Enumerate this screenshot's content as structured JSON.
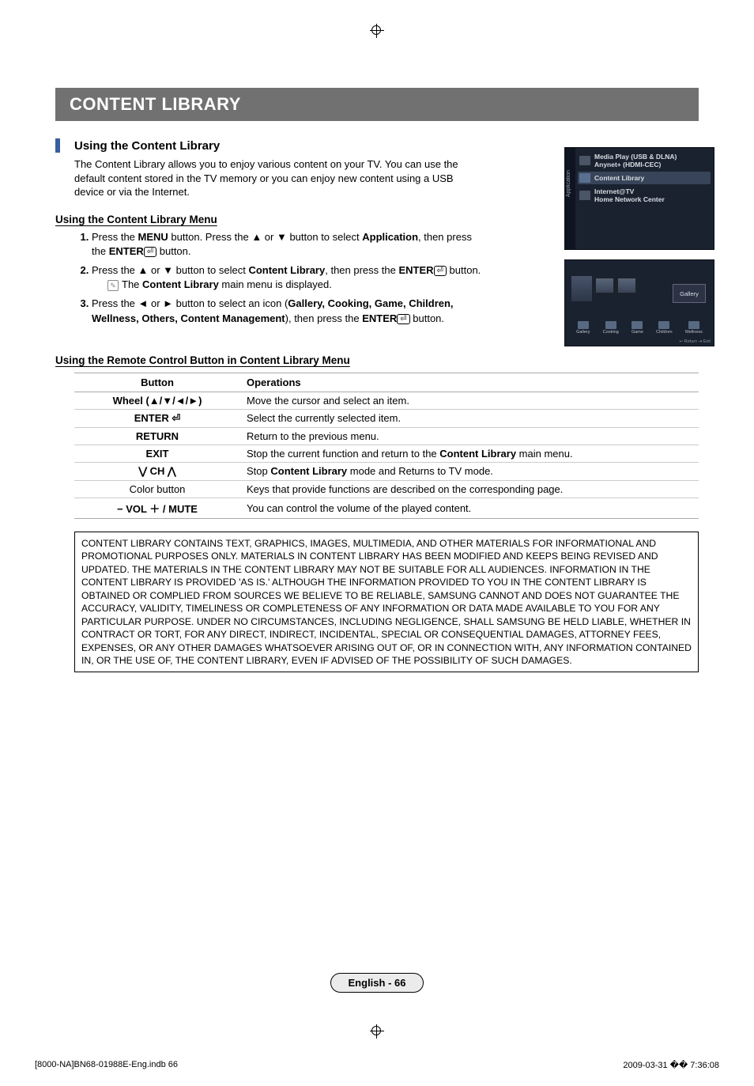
{
  "banner": "CONTENT LIBRARY",
  "section_title": "Using the Content Library",
  "intro": "The Content Library allows you to enjoy various content on your TV. You can use the default content stored in the TV memory or you can enjoy new content using a USB device or via the Internet.",
  "subhead_menu": "Using the Content Library Menu",
  "steps": [
    {
      "pre": "Press the ",
      "b1": "MENU",
      "mid1": " button. Press the ▲ or ▼ button to select ",
      "b2": "Application",
      "mid2": ", then press the ",
      "b3": "ENTER",
      "post": " button."
    },
    {
      "pre": "Press the ▲ or ▼ button to select ",
      "b1": "Content Library",
      "mid1": ", then press the ",
      "b2": "ENTER",
      "post": " button.",
      "note_pre": "The ",
      "note_b": "Content Library",
      "note_post": " main menu is displayed."
    },
    {
      "pre": "Press the ◄ or ► button to select an icon (",
      "b1": "Gallery, Cooking, Game, Children, Wellness, Others, Content Management",
      "mid1": "), then press the ",
      "b2": "ENTER",
      "post": " button."
    }
  ],
  "subhead_rc": "Using the Remote Control Button in Content Library Menu",
  "table": {
    "headers": [
      "Button",
      "Operations"
    ],
    "rows": [
      {
        "btn": "Wheel (▲/▼/◄/►)",
        "op": "Move the cursor and select an item."
      },
      {
        "btn": "ENTER ⏎",
        "op": "Select the currently selected item."
      },
      {
        "btn": "RETURN",
        "op": "Return to the previous menu."
      },
      {
        "btn": "EXIT",
        "op_pre": "Stop the current function and return to the ",
        "op_b": "Content Library",
        "op_post": " main menu."
      },
      {
        "btn": "⋁ CH ⋀",
        "op_pre": "Stop ",
        "op_b": "Content Library",
        "op_post": " mode and Returns to TV mode."
      },
      {
        "btn": "Color button",
        "btn_plain": true,
        "op": "Keys that provide functions are described on the corresponding page."
      },
      {
        "btn": "− VOL ＋ / MUTE",
        "op": "You can control the volume of the played content."
      }
    ]
  },
  "disclaimer": "CONTENT LIBRARY CONTAINS TEXT, GRAPHICS, IMAGES, MULTIMEDIA, AND OTHER MATERIALS FOR INFORMATIONAL AND PROMOTIONAL PURPOSES ONLY. MATERIALS IN CONTENT LIBRARY HAS BEEN MODIFIED AND KEEPS BEING REVISED AND UPDATED. THE MATERIALS IN THE CONTENT LIBRARY MAY NOT BE SUITABLE FOR ALL AUDIENCES.\nINFORMATION IN THE CONTENT LIBRARY IS PROVIDED 'AS IS.' ALTHOUGH THE INFORMATION PROVIDED TO YOU IN THE CONTENT LIBRARY IS OBTAINED OR COMPLIED FROM SOURCES WE BELIEVE TO BE RELIABLE, SAMSUNG CANNOT AND DOES NOT GUARANTEE THE ACCURACY, VALIDITY, TIMELINESS OR COMPLETENESS OF ANY INFORMATION OR DATA MADE AVAILABLE TO YOU FOR ANY PARTICULAR PURPOSE. UNDER NO CIRCUMSTANCES, INCLUDING NEGLIGENCE, SHALL SAMSUNG BE HELD LIABLE, WHETHER IN CONTRACT OR TORT, FOR ANY DIRECT, INDIRECT, INCIDENTAL, SPECIAL OR CONSEQUENTIAL DAMAGES, ATTORNEY FEES, EXPENSES, OR ANY OTHER DAMAGES WHATSOEVER ARISING OUT OF, OR IN CONNECTION WITH, ANY INFORMATION CONTAINED IN, OR THE USE OF, THE CONTENT LIBRARY, EVEN IF ADVISED OF THE POSSIBILITY OF SUCH DAMAGES.",
  "page_label": "English - 66",
  "doc_footer_left": "[8000-NA]BN68-01988E-Eng.indb   66",
  "doc_footer_right": "2009-03-31   �� 7:36:08",
  "tv1": {
    "side": "Application",
    "items": [
      {
        "line1": "Media Play (USB & DLNA)",
        "line2": "Anynet+ (HDMI-CEC)"
      },
      {
        "line1": "Content Library",
        "sel": true
      },
      {
        "line1": "Internet@TV",
        "line2": "Home Network Center"
      }
    ]
  },
  "tv2": {
    "badge": "Gallery",
    "icons": [
      "Gallery",
      "Cooking",
      "Game",
      "Children",
      "Wellness"
    ],
    "bottom": "↩ Return    ⇥ Exit"
  }
}
